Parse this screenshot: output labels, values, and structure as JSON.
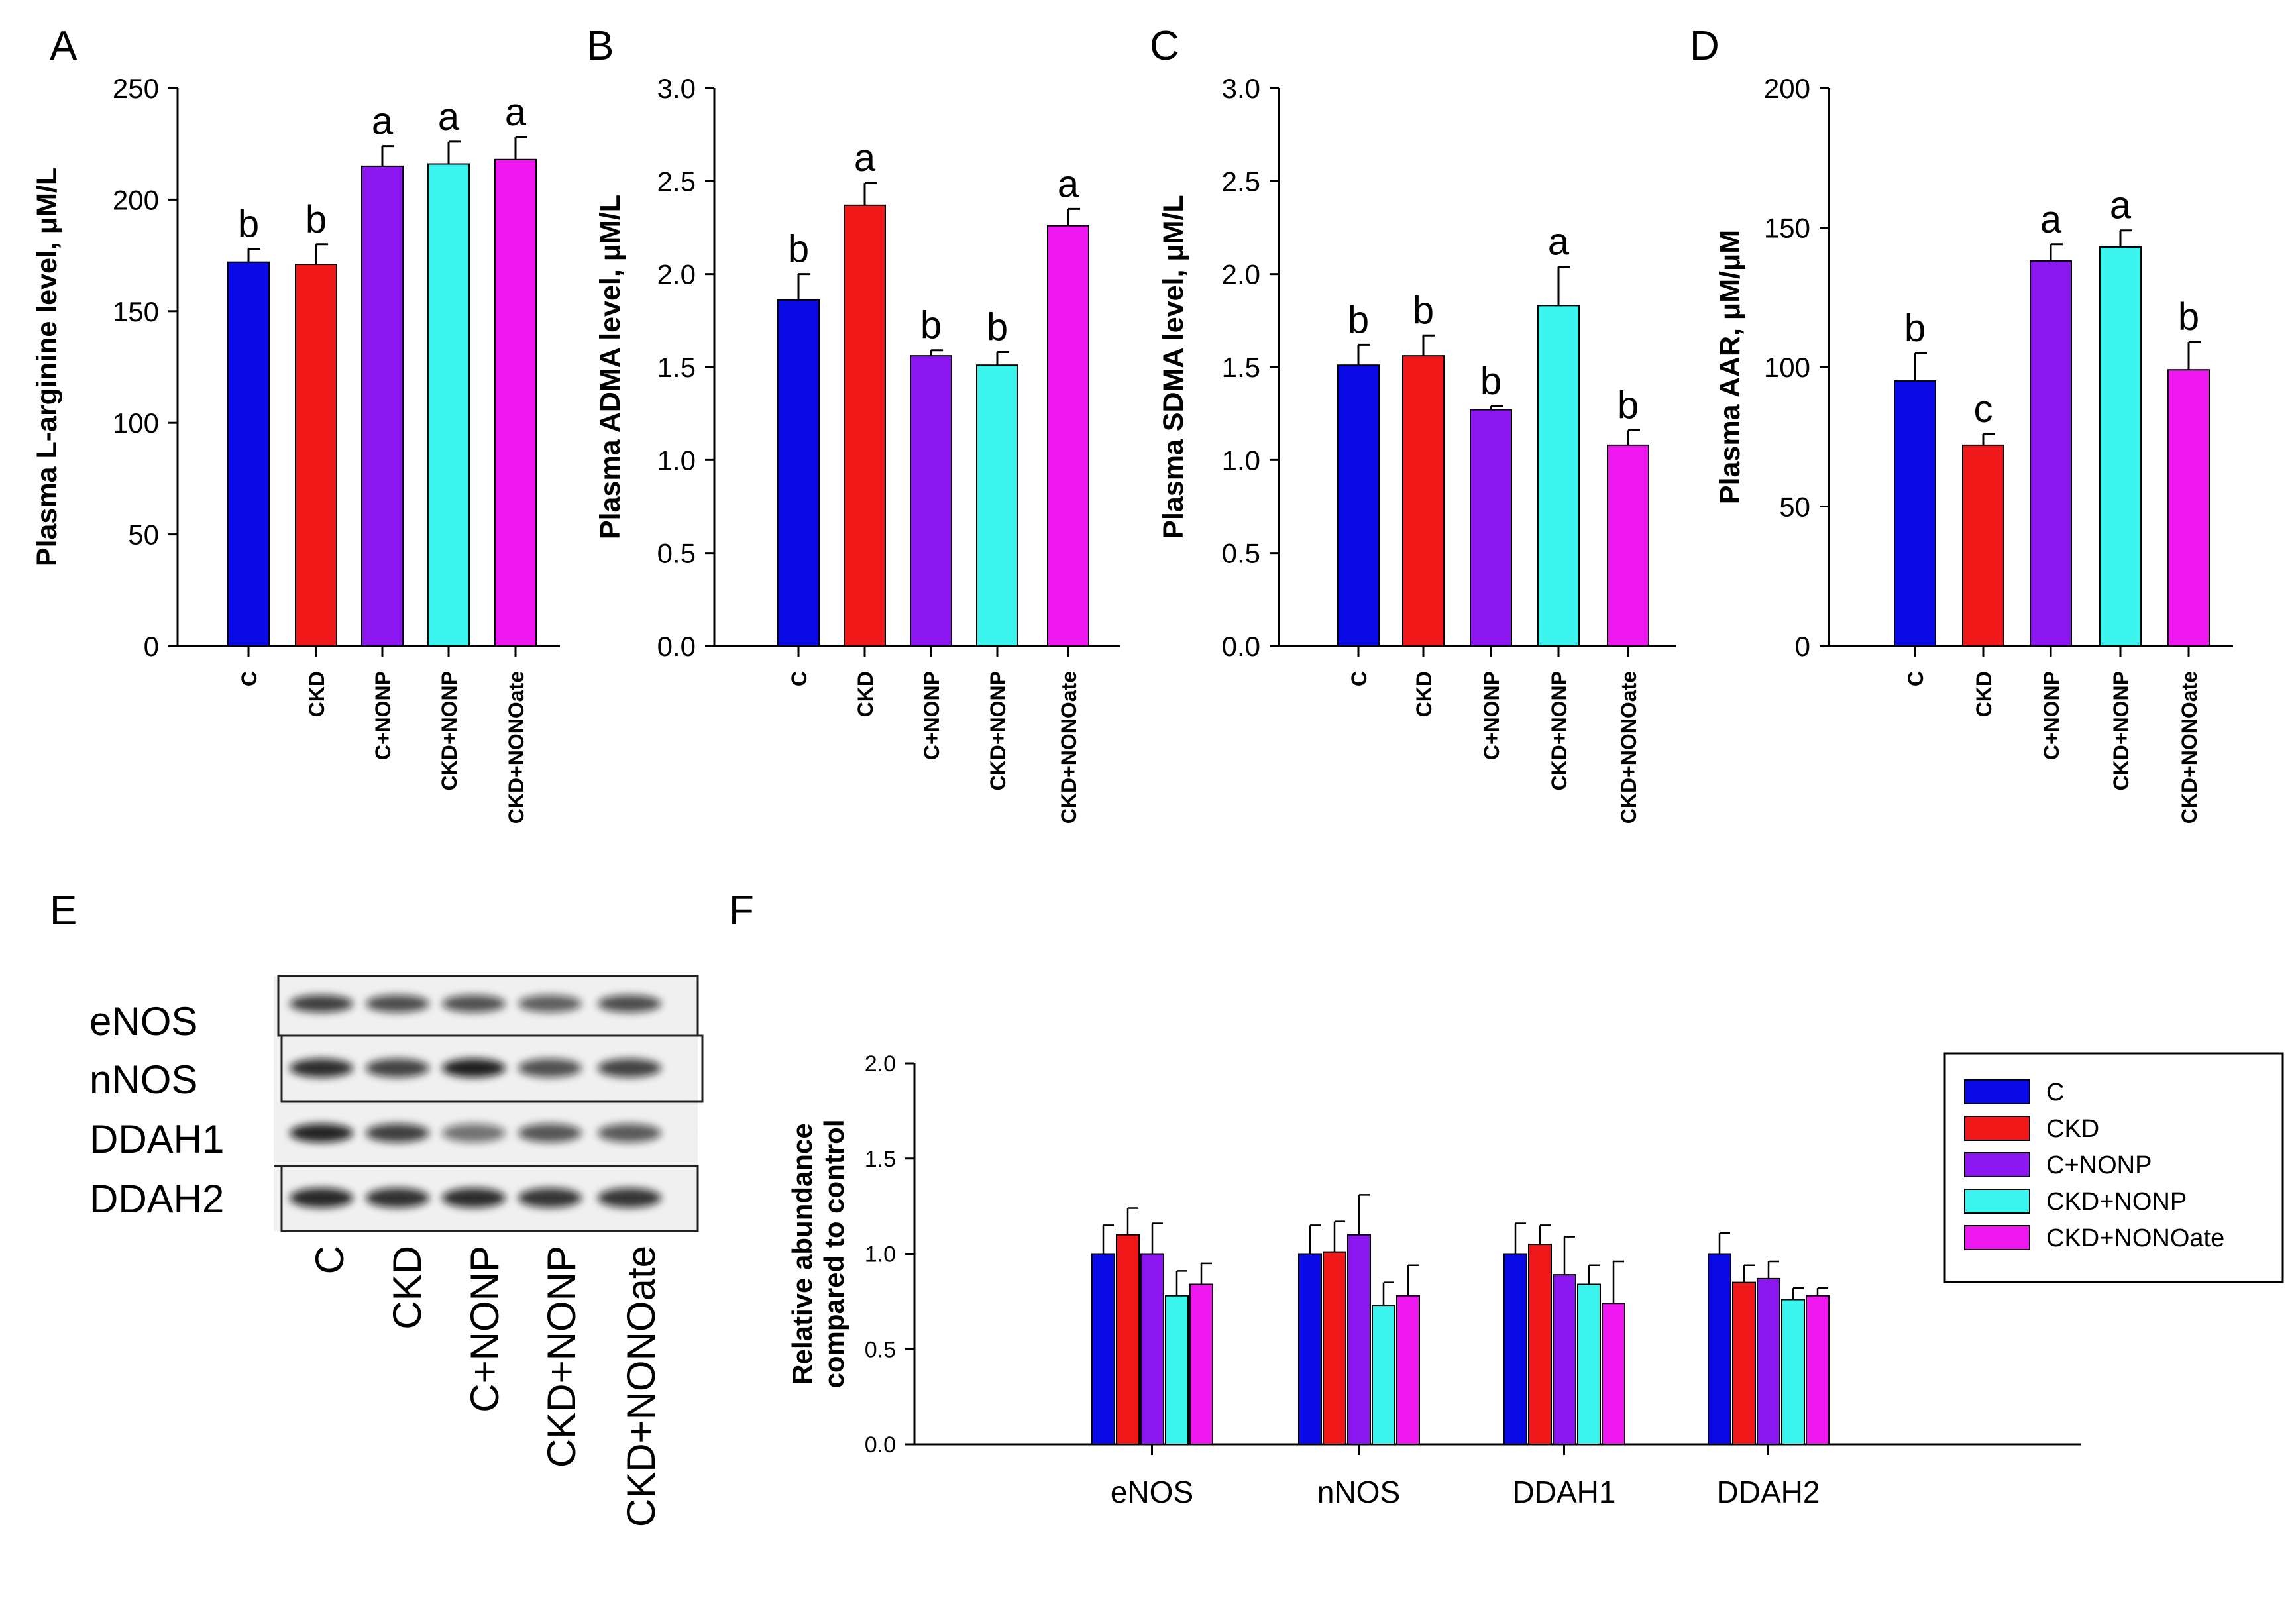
{
  "figure": {
    "panel_labels": [
      "A",
      "B",
      "C",
      "D",
      "E",
      "F"
    ],
    "groups": [
      "C",
      "CKD",
      "C+NONP",
      "CKD+NONP",
      "CKD+NONOate"
    ],
    "group_colors": [
      "#0a0ae6",
      "#f01818",
      "#8c16f0",
      "#3cf4ee",
      "#f018f0"
    ]
  },
  "chart_data": [
    {
      "panel": "A",
      "type": "bar",
      "ylabel": "Plasma L-arginine level, μM/L",
      "ylim": [
        0,
        250
      ],
      "yticks": [
        "0",
        "50",
        "100",
        "150",
        "200",
        "250"
      ],
      "categories": [
        "C",
        "CKD",
        "C+NONP",
        "CKD+NONP",
        "CKD+NONOate"
      ],
      "values": [
        172,
        171,
        215,
        216,
        218
      ],
      "errors": [
        6,
        9,
        9,
        10,
        10
      ],
      "significance": [
        "b",
        "b",
        "a",
        "a",
        "a"
      ]
    },
    {
      "panel": "B",
      "type": "bar",
      "ylabel": "Plasma ADMA level, μM/L",
      "ylim": [
        0,
        3
      ],
      "yticks": [
        "0.0",
        "0.5",
        "1.0",
        "1.5",
        "2.0",
        "2.5",
        "3.0"
      ],
      "categories": [
        "C",
        "CKD",
        "C+NONP",
        "CKD+NONP",
        "CKD+NONOate"
      ],
      "values": [
        1.86,
        2.37,
        1.56,
        1.51,
        2.26
      ],
      "errors": [
        0.14,
        0.12,
        0.03,
        0.07,
        0.09
      ],
      "significance": [
        "b",
        "a",
        "b",
        "b",
        "a"
      ]
    },
    {
      "panel": "C",
      "type": "bar",
      "ylabel": "Plasma SDMA level, μM/L",
      "ylim": [
        0,
        3
      ],
      "yticks": [
        "0.0",
        "0.5",
        "1.0",
        "1.5",
        "2.0",
        "2.5",
        "3.0"
      ],
      "categories": [
        "C",
        "CKD",
        "C+NONP",
        "CKD+NONP",
        "CKD+NONOate"
      ],
      "values": [
        1.51,
        1.56,
        1.27,
        1.83,
        1.08
      ],
      "errors": [
        0.11,
        0.11,
        0.02,
        0.21,
        0.08
      ],
      "significance": [
        "b",
        "b",
        "b",
        "a",
        "b"
      ]
    },
    {
      "panel": "D",
      "type": "bar",
      "ylabel": "Plasma AAR, μM/μM",
      "ylim": [
        0,
        200
      ],
      "yticks": [
        "0",
        "50",
        "100",
        "150",
        "200"
      ],
      "categories": [
        "C",
        "CKD",
        "C+NONP",
        "CKD+NONP",
        "CKD+NONOate"
      ],
      "values": [
        95,
        72,
        138,
        143,
        99
      ],
      "errors": [
        10,
        4,
        6,
        6,
        10
      ],
      "significance": [
        "b",
        "c",
        "a",
        "a",
        "b"
      ]
    },
    {
      "panel": "F",
      "type": "bar",
      "ylabel": "Relative abundance compared to control",
      "ylabel_lines": [
        "Relative abundance",
        "compared to control"
      ],
      "ylim": [
        0,
        2
      ],
      "yticks": [
        "0.0",
        "0.5",
        "1.0",
        "1.5",
        "2.0"
      ],
      "categories": [
        "eNOS",
        "nNOS",
        "DDAH1",
        "DDAH2"
      ],
      "legend_placement": "top-right",
      "series": [
        {
          "name": "C",
          "values": [
            1.0,
            1.0,
            1.0,
            1.0
          ],
          "errors": [
            0.15,
            0.15,
            0.16,
            0.11
          ]
        },
        {
          "name": "CKD",
          "values": [
            1.1,
            1.01,
            1.05,
            0.85
          ],
          "errors": [
            0.14,
            0.16,
            0.1,
            0.09
          ]
        },
        {
          "name": "C+NONP",
          "values": [
            1.0,
            1.1,
            0.89,
            0.87
          ],
          "errors": [
            0.16,
            0.21,
            0.2,
            0.09
          ]
        },
        {
          "name": "CKD+NONP",
          "values": [
            0.78,
            0.73,
            0.84,
            0.76
          ],
          "errors": [
            0.13,
            0.12,
            0.1,
            0.06
          ]
        },
        {
          "name": "CKD+NONOate",
          "values": [
            0.84,
            0.78,
            0.74,
            0.78
          ],
          "errors": [
            0.11,
            0.16,
            0.22,
            0.04
          ]
        }
      ]
    }
  ],
  "western_blot": {
    "proteins": [
      "eNOS",
      "nNOS",
      "DDAH1",
      "DDAH2"
    ],
    "lanes": [
      "C",
      "CKD",
      "C+NONP",
      "CKD+NONP",
      "CKD+NONOate"
    ]
  }
}
